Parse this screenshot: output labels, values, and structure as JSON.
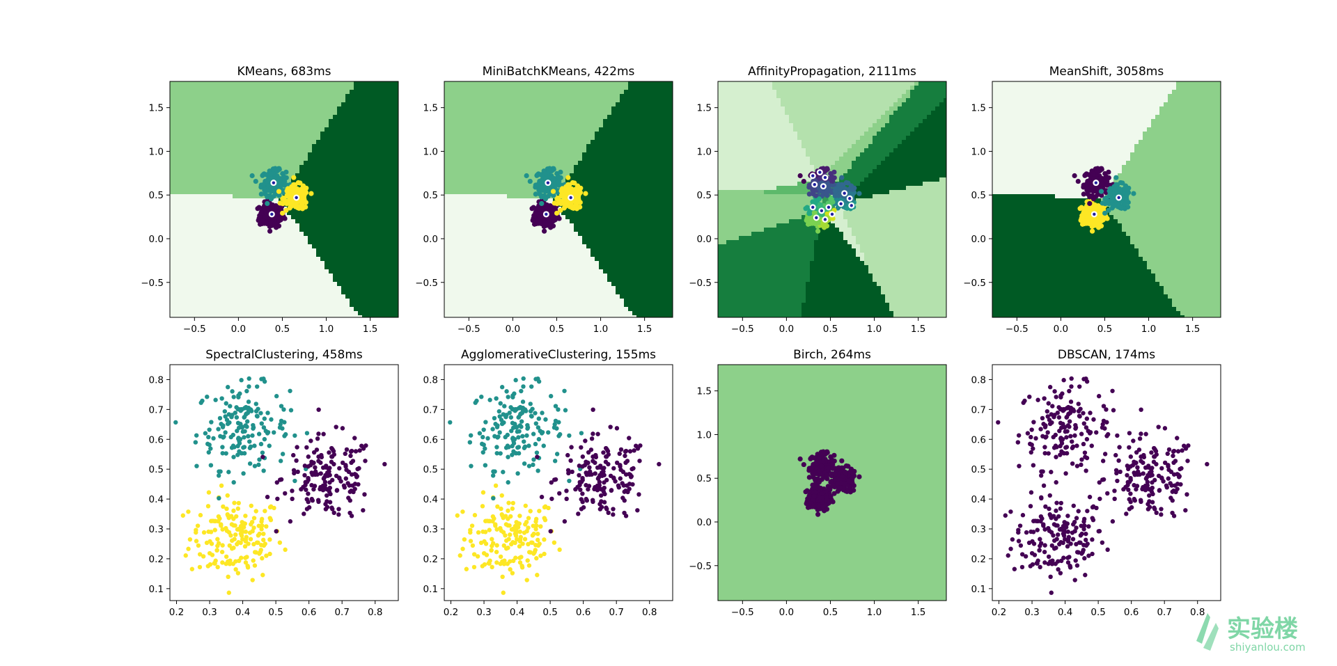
{
  "colors": {
    "cluster": [
      "#440154",
      "#21918c",
      "#fde725"
    ],
    "greens": [
      "#f0f9ed",
      "#d5efcf",
      "#b4e1ad",
      "#8dd08a",
      "#5db96b",
      "#339d55",
      "#167e3e",
      "#005a24"
    ],
    "center_fill": "#ffffff",
    "center_edge": "#1f1fa0"
  },
  "chart_data": [
    {
      "type": "scatter",
      "title": "KMeans, 683ms",
      "ms": 683,
      "xlim": [
        -0.78,
        1.82
      ],
      "ylim": [
        -0.9,
        1.8
      ],
      "xticks": [
        -0.5,
        0.0,
        0.5,
        1.0,
        1.5
      ],
      "yticks": [
        -0.5,
        0.0,
        0.5,
        1.0,
        1.5
      ],
      "xtick_labels": [
        "−0.5",
        "0.0",
        "0.5",
        "1.0",
        "1.5"
      ],
      "ytick_labels": [
        "−0.5",
        "0.0",
        "0.5",
        "1.0",
        "1.5"
      ],
      "background": "voronoi",
      "bg_colors": [
        0,
        3,
        7
      ],
      "cluster_colors": [
        0,
        1,
        2
      ],
      "centers": [
        [
          0.38,
          0.28
        ],
        [
          0.4,
          0.64
        ],
        [
          0.66,
          0.47
        ]
      ]
    },
    {
      "type": "scatter",
      "title": "MiniBatchKMeans, 422ms",
      "ms": 422,
      "xlim": [
        -0.78,
        1.82
      ],
      "ylim": [
        -0.9,
        1.8
      ],
      "xticks": [
        -0.5,
        0.0,
        0.5,
        1.0,
        1.5
      ],
      "yticks": [
        -0.5,
        0.0,
        0.5,
        1.0,
        1.5
      ],
      "xtick_labels": [
        "−0.5",
        "0.0",
        "0.5",
        "1.0",
        "1.5"
      ],
      "ytick_labels": [
        "−0.5",
        "0.0",
        "0.5",
        "1.0",
        "1.5"
      ],
      "background": "voronoi",
      "bg_colors": [
        0,
        3,
        7
      ],
      "cluster_colors": [
        0,
        1,
        2
      ],
      "centers": [
        [
          0.38,
          0.28
        ],
        [
          0.4,
          0.64
        ],
        [
          0.66,
          0.47
        ]
      ]
    },
    {
      "type": "scatter",
      "title": "AffinityPropagation, 2111ms",
      "ms": 2111,
      "xlim": [
        -0.78,
        1.82
      ],
      "ylim": [
        -0.9,
        1.8
      ],
      "xticks": [
        -0.5,
        0.0,
        0.5,
        1.0,
        1.5
      ],
      "yticks": [
        -0.5,
        0.0,
        0.5,
        1.0,
        1.5
      ],
      "xtick_labels": [
        "−0.5",
        "0.0",
        "0.5",
        "1.0",
        "1.5"
      ],
      "ytick_labels": [
        "−0.5",
        "0.0",
        "0.5",
        "1.0",
        "1.5"
      ],
      "background": "voronoi",
      "bg_colors": [
        1,
        2,
        3,
        4,
        5,
        6,
        7,
        1,
        2,
        3,
        4,
        5,
        6,
        7,
        1
      ],
      "cluster_colors": "viridis15",
      "centers": [
        [
          0.3,
          0.72
        ],
        [
          0.38,
          0.76
        ],
        [
          0.44,
          0.7
        ],
        [
          0.32,
          0.62
        ],
        [
          0.42,
          0.6
        ],
        [
          0.66,
          0.52
        ],
        [
          0.72,
          0.46
        ],
        [
          0.62,
          0.4
        ],
        [
          0.74,
          0.38
        ],
        [
          0.3,
          0.36
        ],
        [
          0.4,
          0.32
        ],
        [
          0.48,
          0.36
        ],
        [
          0.34,
          0.24
        ],
        [
          0.44,
          0.22
        ],
        [
          0.52,
          0.28
        ]
      ]
    },
    {
      "type": "scatter",
      "title": "MeanShift, 3058ms",
      "ms": 3058,
      "xlim": [
        -0.78,
        1.82
      ],
      "ylim": [
        -0.9,
        1.8
      ],
      "xticks": [
        -0.5,
        0.0,
        0.5,
        1.0,
        1.5
      ],
      "yticks": [
        -0.5,
        0.0,
        0.5,
        1.0,
        1.5
      ],
      "xtick_labels": [
        "−0.5",
        "0.0",
        "0.5",
        "1.0",
        "1.5"
      ],
      "ytick_labels": [
        "−0.5",
        "0.0",
        "0.5",
        "1.0",
        "1.5"
      ],
      "background": "voronoi",
      "bg_colors": [
        7,
        0,
        3
      ],
      "cluster_colors": [
        2,
        0,
        1
      ],
      "centers": [
        [
          0.38,
          0.28
        ],
        [
          0.4,
          0.64
        ],
        [
          0.66,
          0.47
        ]
      ]
    },
    {
      "type": "scatter",
      "title": "SpectralClustering, 458ms",
      "ms": 458,
      "xlim": [
        0.18,
        0.87
      ],
      "ylim": [
        0.06,
        0.85
      ],
      "xticks": [
        0.2,
        0.3,
        0.4,
        0.5,
        0.6,
        0.7,
        0.8
      ],
      "yticks": [
        0.1,
        0.2,
        0.3,
        0.4,
        0.5,
        0.6,
        0.7,
        0.8
      ],
      "xtick_labels": [
        "0.2",
        "0.3",
        "0.4",
        "0.5",
        "0.6",
        "0.7",
        "0.8"
      ],
      "ytick_labels": [
        "0.1",
        "0.2",
        "0.3",
        "0.4",
        "0.5",
        "0.6",
        "0.7",
        "0.8"
      ],
      "background": "none",
      "cluster_colors": [
        2,
        1,
        0
      ]
    },
    {
      "type": "scatter",
      "title": "AgglomerativeClustering, 155ms",
      "ms": 155,
      "xlim": [
        0.18,
        0.87
      ],
      "ylim": [
        0.06,
        0.85
      ],
      "xticks": [
        0.2,
        0.3,
        0.4,
        0.5,
        0.6,
        0.7,
        0.8
      ],
      "yticks": [
        0.1,
        0.2,
        0.3,
        0.4,
        0.5,
        0.6,
        0.7,
        0.8
      ],
      "xtick_labels": [
        "0.2",
        "0.3",
        "0.4",
        "0.5",
        "0.6",
        "0.7",
        "0.8"
      ],
      "ytick_labels": [
        "0.1",
        "0.2",
        "0.3",
        "0.4",
        "0.5",
        "0.6",
        "0.7",
        "0.8"
      ],
      "background": "none",
      "cluster_colors": [
        2,
        1,
        0
      ]
    },
    {
      "type": "scatter",
      "title": "Birch, 264ms",
      "ms": 264,
      "xlim": [
        -0.78,
        1.82
      ],
      "ylim": [
        -0.9,
        1.8
      ],
      "xticks": [
        -0.5,
        0.0,
        0.5,
        1.0,
        1.5
      ],
      "yticks": [
        -0.5,
        0.0,
        0.5,
        1.0,
        1.5
      ],
      "xtick_labels": [
        "−0.5",
        "0.0",
        "0.5",
        "1.0",
        "1.5"
      ],
      "ytick_labels": [
        "−0.5",
        "0.0",
        "0.5",
        "1.0",
        "1.5"
      ],
      "background": "solid",
      "bg_colors": [
        3
      ],
      "cluster_colors": [
        0,
        0,
        0
      ]
    },
    {
      "type": "scatter",
      "title": "DBSCAN, 174ms",
      "ms": 174,
      "xlim": [
        0.18,
        0.87
      ],
      "ylim": [
        0.06,
        0.85
      ],
      "xticks": [
        0.2,
        0.3,
        0.4,
        0.5,
        0.6,
        0.7,
        0.8
      ],
      "yticks": [
        0.1,
        0.2,
        0.3,
        0.4,
        0.5,
        0.6,
        0.7,
        0.8
      ],
      "xtick_labels": [
        "0.2",
        "0.3",
        "0.4",
        "0.5",
        "0.6",
        "0.7",
        "0.8"
      ],
      "ytick_labels": [
        "0.1",
        "0.2",
        "0.3",
        "0.4",
        "0.5",
        "0.6",
        "0.7",
        "0.8"
      ],
      "background": "none",
      "cluster_colors": [
        0,
        0,
        0
      ]
    }
  ],
  "blobs": {
    "centers": [
      [
        0.38,
        0.27
      ],
      [
        0.4,
        0.64
      ],
      [
        0.66,
        0.47
      ]
    ],
    "spread": [
      0.07,
      0.07,
      0.07
    ],
    "n_per_cluster": 167
  },
  "watermark": {
    "brand_cn": "实验楼",
    "brand_en": "shiyanlou.com",
    "color": "#7fd6a6"
  }
}
